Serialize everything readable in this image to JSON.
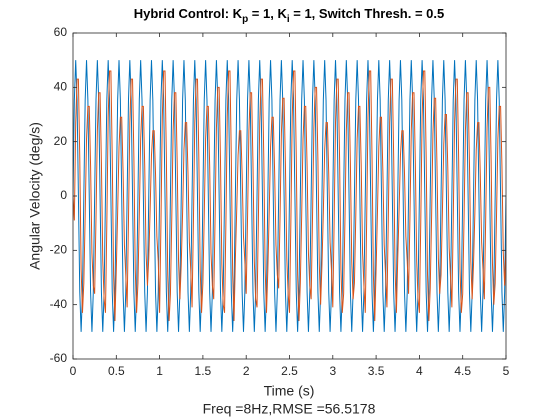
{
  "chart_data": {
    "type": "line",
    "title": [
      "Hybrid Control: K",
      "p",
      " = 1, K",
      "i",
      " = 1, Switch Thresh. = 0.5"
    ],
    "xlabel": "Time (s)",
    "ylabel": "Angular Velocity (deg/s)",
    "annotation": "Freq =8Hz,RMSE =56.5178",
    "xlim": [
      0,
      5
    ],
    "xticks": [
      0,
      0.5,
      1,
      1.5,
      2,
      2.5,
      3,
      3.5,
      4,
      4.5,
      5
    ],
    "ylim": [
      -60,
      60
    ],
    "yticks": [
      -60,
      -40,
      -20,
      0,
      20,
      40,
      60
    ],
    "grid": false,
    "x": [
      0,
      0.015625,
      0.03125,
      0.046875,
      0.0625,
      0.078125,
      0.09375,
      0.109375,
      0.125,
      0.140625,
      0.15625,
      0.171875,
      0.1875,
      0.203125,
      0.21875,
      0.234375,
      0.25,
      0.265625,
      0.28125,
      0.296875,
      0.3125,
      0.328125,
      0.34375,
      0.359375,
      0.375,
      0.390625,
      0.40625,
      0.421875,
      0.4375,
      0.453125,
      0.46875,
      0.484375,
      0.5,
      0.515625,
      0.53125,
      0.546875,
      0.5625,
      0.578125,
      0.59375,
      0.609375,
      0.625,
      0.640625,
      0.65625,
      0.671875,
      0.6875,
      0.703125,
      0.71875,
      0.734375,
      0.75,
      0.765625,
      0.78125,
      0.796875,
      0.8125,
      0.828125,
      0.84375,
      0.859375,
      0.875,
      0.890625,
      0.90625,
      0.921875,
      0.9375,
      0.953125,
      0.96875,
      0.984375,
      1,
      1.015625,
      1.03125,
      1.046875,
      1.0625,
      1.078125,
      1.09375,
      1.109375,
      1.125,
      1.140625,
      1.15625,
      1.171875,
      1.1875,
      1.203125,
      1.21875,
      1.234375,
      1.25,
      1.265625,
      1.28125,
      1.296875,
      1.3125,
      1.328125,
      1.34375,
      1.359375,
      1.375,
      1.390625,
      1.40625,
      1.421875,
      1.4375,
      1.453125,
      1.46875,
      1.484375,
      1.5,
      1.515625,
      1.53125,
      1.546875,
      1.5625,
      1.578125,
      1.59375,
      1.609375,
      1.625,
      1.640625,
      1.65625,
      1.671875,
      1.6875,
      1.703125,
      1.71875,
      1.734375,
      1.75,
      1.765625,
      1.78125,
      1.796875,
      1.8125,
      1.828125,
      1.84375,
      1.859375,
      1.875,
      1.890625,
      1.90625,
      1.921875,
      1.9375,
      1.953125,
      1.96875,
      1.984375,
      2,
      2.015625,
      2.03125,
      2.046875,
      2.0625,
      2.078125,
      2.09375,
      2.109375,
      2.125,
      2.140625,
      2.15625,
      2.171875,
      2.1875,
      2.203125,
      2.21875,
      2.234375,
      2.25,
      2.265625,
      2.28125,
      2.296875,
      2.3125,
      2.328125,
      2.34375,
      2.359375,
      2.375,
      2.390625,
      2.40625,
      2.421875,
      2.4375,
      2.453125,
      2.46875,
      2.484375,
      2.5,
      2.515625,
      2.53125,
      2.546875,
      2.5625,
      2.578125,
      2.59375,
      2.609375,
      2.625,
      2.640625,
      2.65625,
      2.671875,
      2.6875,
      2.703125,
      2.71875,
      2.734375,
      2.75,
      2.765625,
      2.78125,
      2.796875,
      2.8125,
      2.828125,
      2.84375,
      2.859375,
      2.875,
      2.890625,
      2.90625,
      2.921875,
      2.9375,
      2.953125,
      2.96875,
      2.984375,
      3,
      3.015625,
      3.03125,
      3.046875,
      3.0625,
      3.078125,
      3.09375,
      3.109375,
      3.125,
      3.140625,
      3.15625,
      3.171875,
      3.1875,
      3.203125,
      3.21875,
      3.234375,
      3.25,
      3.265625,
      3.28125,
      3.296875,
      3.3125,
      3.328125,
      3.34375,
      3.359375,
      3.375,
      3.390625,
      3.40625,
      3.421875,
      3.4375,
      3.453125,
      3.46875,
      3.484375,
      3.5,
      3.515625,
      3.53125,
      3.546875,
      3.5625,
      3.578125,
      3.59375,
      3.609375,
      3.625,
      3.640625,
      3.65625,
      3.671875,
      3.6875,
      3.703125,
      3.71875,
      3.734375,
      3.75,
      3.765625,
      3.78125,
      3.796875,
      3.8125,
      3.828125,
      3.84375,
      3.859375,
      3.875,
      3.890625,
      3.90625,
      3.921875,
      3.9375,
      3.953125,
      3.96875,
      3.984375,
      4,
      4.015625,
      4.03125,
      4.046875,
      4.0625,
      4.078125,
      4.09375,
      4.109375,
      4.125,
      4.140625,
      4.15625,
      4.171875,
      4.1875,
      4.203125,
      4.21875,
      4.234375,
      4.25,
      4.265625,
      4.28125,
      4.296875,
      4.3125,
      4.328125,
      4.34375,
      4.359375,
      4.375,
      4.390625,
      4.40625,
      4.421875,
      4.4375,
      4.453125,
      4.46875,
      4.484375,
      4.5,
      4.515625,
      4.53125,
      4.546875,
      4.5625,
      4.578125,
      4.59375,
      4.609375,
      4.625,
      4.640625,
      4.65625,
      4.671875,
      4.6875,
      4.703125,
      4.71875,
      4.734375,
      4.75,
      4.765625,
      4.78125,
      4.796875,
      4.8125,
      4.828125,
      4.84375,
      4.859375,
      4.875,
      4.890625,
      4.90625,
      4.921875,
      4.9375,
      4.953125,
      4.96875,
      4.984375,
      5
    ],
    "series": [
      {
        "color": "#0072BD",
        "values": [
          0,
          35.36,
          50,
          35.36,
          0,
          -35.36,
          -50,
          -35.36,
          0,
          35.36,
          50,
          35.36,
          0,
          -35.36,
          -50,
          -35.36,
          0,
          35.36,
          50,
          35.36,
          0,
          -35.36,
          -50,
          -35.36,
          0,
          35.36,
          50,
          35.36,
          0,
          -35.36,
          -50,
          -35.36,
          0,
          35.36,
          50,
          35.36,
          0,
          -35.36,
          -50,
          -35.36,
          0,
          35.36,
          50,
          35.36,
          0,
          -35.36,
          -50,
          -35.36,
          0,
          35.36,
          50,
          35.36,
          0,
          -35.36,
          -50,
          -35.36,
          0,
          35.36,
          50,
          35.36,
          0,
          -35.36,
          -50,
          -35.36,
          0,
          35.36,
          50,
          35.36,
          0,
          -35.36,
          -50,
          -35.36,
          0,
          35.36,
          50,
          35.36,
          0,
          -35.36,
          -50,
          -35.36,
          0,
          35.36,
          50,
          35.36,
          0,
          -35.36,
          -50,
          -35.36,
          0,
          35.36,
          50,
          35.36,
          0,
          -35.36,
          -50,
          -35.36,
          0,
          35.36,
          50,
          35.36,
          0,
          -35.36,
          -50,
          -35.36,
          0,
          35.36,
          50,
          35.36,
          0,
          -35.36,
          -50,
          -35.36,
          0,
          35.36,
          50,
          35.36,
          0,
          -35.36,
          -50,
          -35.36,
          0,
          35.36,
          50,
          35.36,
          0,
          -35.36,
          -50,
          -35.36,
          0,
          35.36,
          50,
          35.36,
          0,
          -35.36,
          -50,
          -35.36,
          0,
          35.36,
          50,
          35.36,
          0,
          -35.36,
          -50,
          -35.36,
          0,
          35.36,
          50,
          35.36,
          0,
          -35.36,
          -50,
          -35.36,
          0,
          35.36,
          50,
          35.36,
          0,
          -35.36,
          -50,
          -35.36,
          0,
          35.36,
          50,
          35.36,
          0,
          -35.36,
          -50,
          -35.36,
          0,
          35.36,
          50,
          35.36,
          0,
          -35.36,
          -50,
          -35.36,
          0,
          35.36,
          50,
          35.36,
          0,
          -35.36,
          -50,
          -35.36,
          0,
          35.36,
          50,
          35.36,
          0,
          -35.36,
          -50,
          -35.36,
          0,
          35.36,
          50,
          35.36,
          0,
          -35.36,
          -50,
          -35.36,
          0,
          35.36,
          50,
          35.36,
          0,
          -35.36,
          -50,
          -35.36,
          0,
          35.36,
          50,
          35.36,
          0,
          -35.36,
          -50,
          -35.36,
          0,
          35.36,
          50,
          35.36,
          0,
          -35.36,
          -50,
          -35.36,
          0,
          35.36,
          50,
          35.36,
          0,
          -35.36,
          -50,
          -35.36,
          0,
          35.36,
          50,
          35.36,
          0,
          -35.36,
          -50,
          -35.36,
          0,
          35.36,
          50,
          35.36,
          0,
          -35.36,
          -50,
          -35.36,
          0,
          35.36,
          50,
          35.36,
          0,
          -35.36,
          -50,
          -35.36,
          0,
          35.36,
          50,
          35.36,
          0,
          -35.36,
          -50,
          -35.36,
          0,
          35.36,
          50,
          35.36,
          0,
          -35.36,
          -50,
          -35.36,
          0,
          35.36,
          50,
          35.36,
          0,
          -35.36,
          -50,
          -35.36,
          0,
          35.36,
          50,
          35.36,
          0,
          -35.36,
          -50,
          -35.36,
          0,
          35.36,
          50,
          35.36,
          0,
          -35.36,
          -50,
          -35.36,
          0,
          35.36,
          50,
          35.36,
          0,
          -35.36,
          -50,
          -35.36,
          0,
          35.36,
          50,
          35.36,
          0,
          -35.36,
          -50,
          -35.36,
          0,
          35.36,
          50,
          35.36,
          0,
          -35.36,
          -50,
          -35.36,
          0
        ]
      },
      {
        "color": "#D95319",
        "values": [
          0,
          -9,
          27,
          43,
          43,
          14,
          -27,
          -43,
          -32,
          -7,
          21,
          33,
          33,
          11,
          -21,
          -33,
          -36,
          -8,
          24,
          38,
          38,
          12,
          -24,
          -38,
          -43,
          -10,
          29,
          46,
          46,
          14,
          -29,
          -46,
          -27,
          -6,
          18,
          29,
          29,
          9,
          -18,
          -29,
          -41,
          -9,
          27,
          43,
          43,
          14,
          -27,
          -43,
          -32,
          -7,
          21,
          33,
          33,
          11,
          -21,
          -33,
          -23,
          -5,
          15,
          24,
          24,
          8,
          -15,
          -24,
          -43,
          -10,
          29,
          46,
          46,
          14,
          -29,
          -46,
          -36,
          -8,
          24,
          38,
          38,
          12,
          -24,
          -38,
          -25,
          -6,
          17,
          27,
          27,
          8,
          -17,
          -27,
          -41,
          -9,
          27,
          43,
          43,
          14,
          -27,
          -43,
          -32,
          -7,
          21,
          33,
          33,
          11,
          -21,
          -33,
          -38,
          -8,
          25,
          40,
          40,
          13,
          -25,
          -40,
          -43,
          -10,
          29,
          46,
          46,
          14,
          -29,
          -46,
          -23,
          -5,
          15,
          24,
          24,
          8,
          -15,
          -24,
          -36,
          -8,
          24,
          38,
          38,
          12,
          -24,
          -38,
          -41,
          -9,
          27,
          43,
          43,
          14,
          -27,
          -43,
          -27,
          -6,
          18,
          29,
          29,
          9,
          -18,
          -29,
          -34,
          -8,
          23,
          36,
          36,
          11,
          -23,
          -36,
          -43,
          -10,
          29,
          46,
          46,
          14,
          -29,
          -46,
          -32,
          -7,
          21,
          33,
          33,
          11,
          -21,
          -33,
          -38,
          -8,
          25,
          40,
          40,
          13,
          -25,
          -40,
          -25,
          -6,
          17,
          27,
          27,
          8,
          -17,
          -27,
          -41,
          -9,
          27,
          43,
          43,
          14,
          -27,
          -43,
          -36,
          -8,
          24,
          38,
          38,
          12,
          -24,
          -38,
          -32,
          -7,
          21,
          33,
          33,
          11,
          -21,
          -33,
          -43,
          -10,
          29,
          46,
          46,
          14,
          -29,
          -46,
          -27,
          -6,
          18,
          29,
          29,
          9,
          -18,
          -29,
          -41,
          -9,
          27,
          43,
          43,
          14,
          -27,
          -43,
          -23,
          -5,
          15,
          24,
          24,
          8,
          -15,
          -24,
          -36,
          -8,
          24,
          38,
          38,
          12,
          -24,
          -38,
          -43,
          -10,
          29,
          46,
          46,
          14,
          -29,
          -46,
          -34,
          -8,
          23,
          36,
          36,
          11,
          -23,
          -36,
          -29,
          -6,
          19,
          30,
          30,
          10,
          -19,
          -30,
          -41,
          -9,
          27,
          43,
          43,
          14,
          -27,
          -43,
          -36,
          -8,
          24,
          38,
          38,
          12,
          -24,
          -38,
          -25,
          -6,
          17,
          27,
          27,
          8,
          -17,
          -27,
          -38,
          -8,
          25,
          40,
          40,
          13,
          -25,
          -40,
          -32,
          -7,
          21,
          33,
          33,
          11,
          -21,
          -33,
          -20
        ]
      }
    ]
  }
}
